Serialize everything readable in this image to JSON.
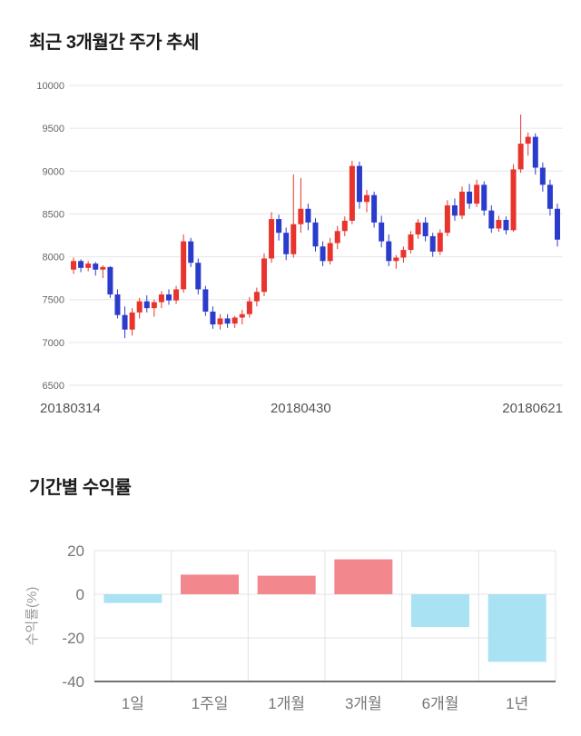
{
  "price_section": {
    "title": "최근 3개월간 주가 추세"
  },
  "returns_section": {
    "title": "기간별 수익률"
  },
  "chart_data": [
    {
      "type": "candlestick",
      "title": "최근 3개월간 주가 추세",
      "ylim": [
        6500,
        10000
      ],
      "yticks": [
        10000,
        9500,
        9000,
        8500,
        8000,
        7500,
        7000,
        6500
      ],
      "xticklabels": [
        "20180314",
        "20180430",
        "20180621"
      ],
      "xtick_indices": [
        0,
        31,
        66
      ],
      "grid": true,
      "up_color": "#e8342c",
      "down_color": "#2b3ccc",
      "grid_color": "#e6e6e6",
      "tick_color": "#666666",
      "xlabel_color": "#555555",
      "candles": [
        [
          7850,
          7990,
          7800,
          7950
        ],
        [
          7950,
          7970,
          7820,
          7870
        ],
        [
          7870,
          7950,
          7830,
          7920
        ],
        [
          7920,
          7940,
          7780,
          7850
        ],
        [
          7850,
          7900,
          7750,
          7880
        ],
        [
          7880,
          7890,
          7520,
          7560
        ],
        [
          7560,
          7620,
          7280,
          7320
        ],
        [
          7320,
          7420,
          7050,
          7150
        ],
        [
          7150,
          7400,
          7080,
          7350
        ],
        [
          7350,
          7520,
          7280,
          7480
        ],
        [
          7480,
          7550,
          7350,
          7400
        ],
        [
          7400,
          7500,
          7300,
          7470
        ],
        [
          7470,
          7600,
          7400,
          7560
        ],
        [
          7560,
          7620,
          7440,
          7490
        ],
        [
          7490,
          7660,
          7450,
          7620
        ],
        [
          7620,
          8260,
          7580,
          8180
        ],
        [
          8180,
          8220,
          7880,
          7930
        ],
        [
          7930,
          7980,
          7560,
          7620
        ],
        [
          7620,
          7660,
          7310,
          7360
        ],
        [
          7360,
          7420,
          7160,
          7210
        ],
        [
          7210,
          7330,
          7150,
          7280
        ],
        [
          7280,
          7330,
          7170,
          7220
        ],
        [
          7220,
          7310,
          7170,
          7290
        ],
        [
          7290,
          7380,
          7210,
          7330
        ],
        [
          7330,
          7530,
          7290,
          7480
        ],
        [
          7480,
          7640,
          7420,
          7590
        ],
        [
          7590,
          8040,
          7540,
          7980
        ],
        [
          7980,
          8520,
          7930,
          8440
        ],
        [
          8440,
          8490,
          8190,
          8280
        ],
        [
          8280,
          8340,
          7960,
          8030
        ],
        [
          8030,
          8960,
          7990,
          8380
        ],
        [
          8380,
          8920,
          8280,
          8560
        ],
        [
          8560,
          8620,
          8310,
          8400
        ],
        [
          8400,
          8450,
          8060,
          8120
        ],
        [
          8120,
          8180,
          7890,
          7950
        ],
        [
          7950,
          8220,
          7910,
          8160
        ],
        [
          8160,
          8360,
          8090,
          8300
        ],
        [
          8300,
          8470,
          8240,
          8420
        ],
        [
          8420,
          9120,
          8380,
          9060
        ],
        [
          9060,
          9110,
          8560,
          8640
        ],
        [
          8640,
          8780,
          8520,
          8720
        ],
        [
          8720,
          8760,
          8340,
          8400
        ],
        [
          8400,
          8480,
          8110,
          8180
        ],
        [
          8180,
          8260,
          7890,
          7950
        ],
        [
          7950,
          8020,
          7860,
          7990
        ],
        [
          7990,
          8120,
          7930,
          8080
        ],
        [
          8080,
          8300,
          8040,
          8260
        ],
        [
          8260,
          8440,
          8210,
          8400
        ],
        [
          8400,
          8460,
          8180,
          8240
        ],
        [
          8240,
          8280,
          8000,
          8060
        ],
        [
          8060,
          8320,
          8020,
          8280
        ],
        [
          8280,
          8660,
          8240,
          8600
        ],
        [
          8600,
          8680,
          8420,
          8480
        ],
        [
          8480,
          8820,
          8440,
          8760
        ],
        [
          8760,
          8850,
          8560,
          8620
        ],
        [
          8620,
          8900,
          8580,
          8840
        ],
        [
          8840,
          8880,
          8480,
          8540
        ],
        [
          8540,
          8600,
          8280,
          8330
        ],
        [
          8330,
          8480,
          8290,
          8430
        ],
        [
          8430,
          8470,
          8260,
          8310
        ],
        [
          8310,
          9080,
          8290,
          9020
        ],
        [
          9020,
          9660,
          8980,
          9320
        ],
        [
          9320,
          9450,
          9180,
          9400
        ],
        [
          9400,
          9440,
          8960,
          9040
        ],
        [
          9040,
          9100,
          8760,
          8840
        ],
        [
          8840,
          8900,
          8480,
          8560
        ],
        [
          8560,
          8620,
          8120,
          8200
        ]
      ]
    },
    {
      "type": "bar",
      "title": "기간별 수익률",
      "ylabel": "수익률(%)",
      "categories": [
        "1일",
        "1주일",
        "1개월",
        "3개월",
        "6개월",
        "1년"
      ],
      "values": [
        -4,
        9,
        8.5,
        16,
        -15,
        -31
      ],
      "ylim": [
        -40,
        20
      ],
      "yticks": [
        20,
        0,
        -20,
        -40
      ],
      "grid": true,
      "positive_color": "#f2878d",
      "negative_color": "#a9e2f3",
      "grid_color": "#e3e3e3",
      "axis_color": "#444444",
      "tick_color": "#767676",
      "ylabel_color": "#999999"
    }
  ]
}
